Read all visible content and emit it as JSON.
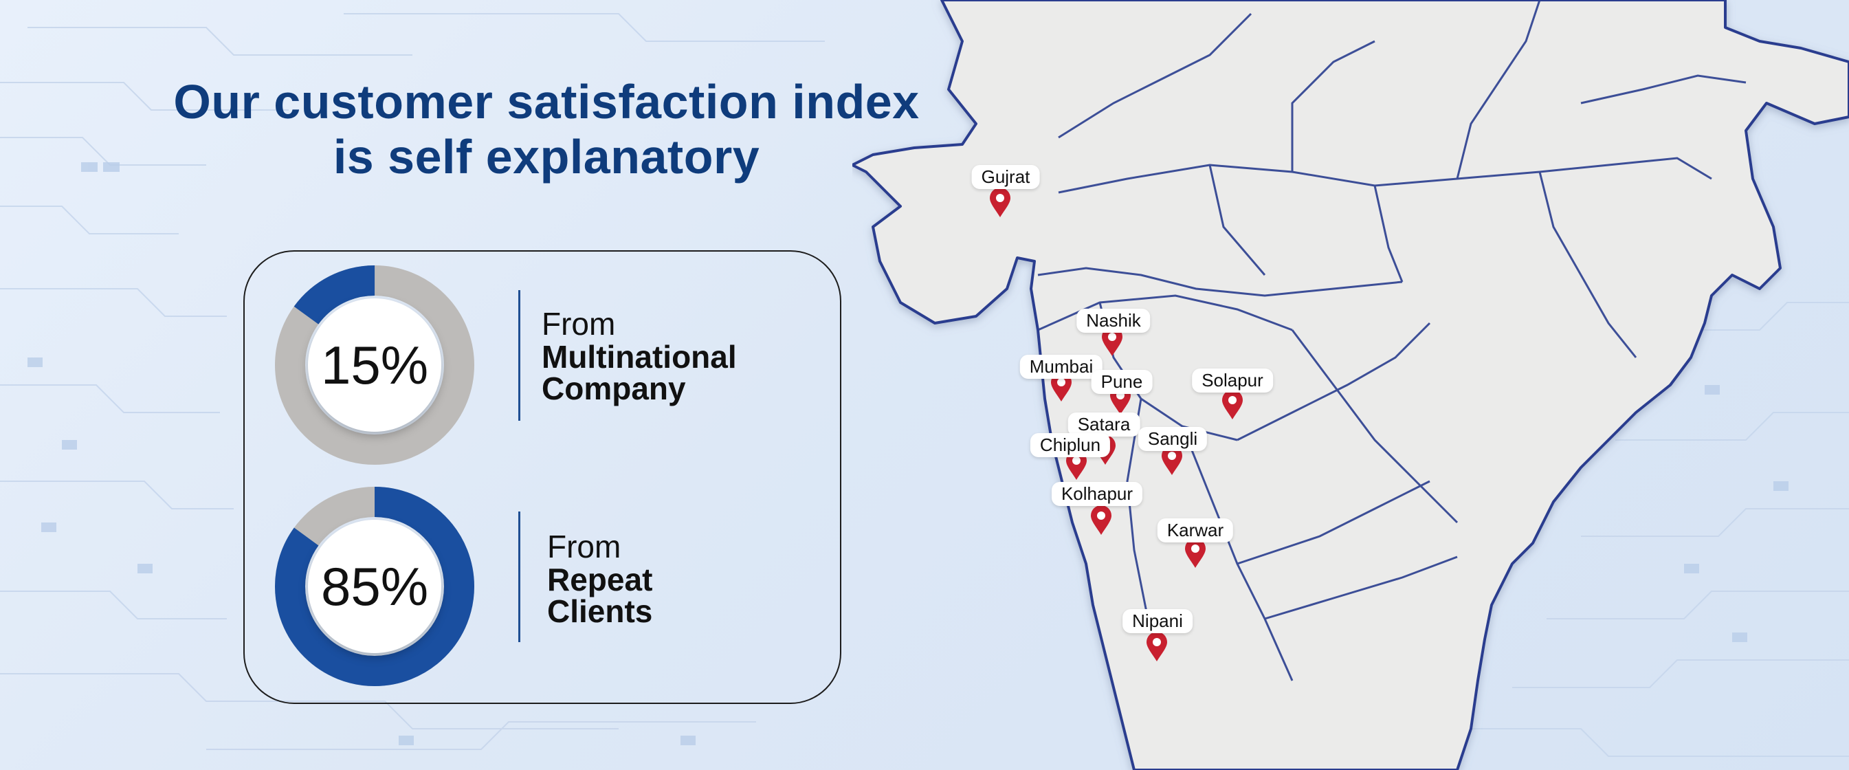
{
  "headline": {
    "line1": "Our customer satisfaction index",
    "line2": "is self explanatory"
  },
  "stats": [
    {
      "value": "15%",
      "fraction": 0.15,
      "from": "From",
      "label_line1": "Multinational",
      "label_line2": "Company"
    },
    {
      "value": "85%",
      "fraction": 0.85,
      "from": "From",
      "label_line1": "Repeat",
      "label_line2": "Clients"
    }
  ],
  "map": {
    "cities": [
      "Gujrat",
      "Nashik",
      "Mumbai",
      "Pune",
      "Solapur",
      "Satara",
      "Chiplun",
      "Sangli",
      "Kolhapur",
      "Karwar",
      "Nipani"
    ]
  },
  "colors": {
    "title": "#0f3c7c",
    "accent_blue": "#1a4fa0",
    "ring_grey": "#bdbbb9",
    "pin_red": "#c8202f",
    "land": "#ebebea",
    "border": "#2a3e8f"
  }
}
